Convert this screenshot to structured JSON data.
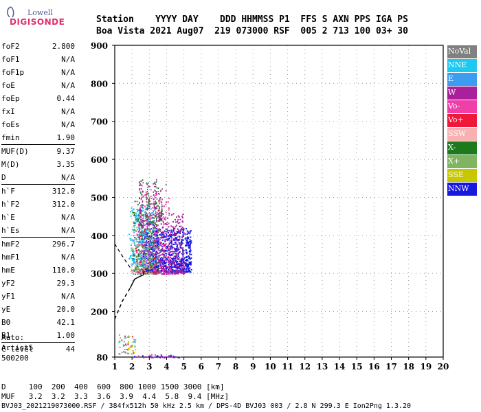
{
  "logo": {
    "line1": "Lowell",
    "line2": "DIGISONDE"
  },
  "header": {
    "line1": "Station    YYYY DAY    DDD HHMMSS P1  FFS S AXN PPS IGA PS",
    "line2": "Boa Vista 2021 Aug07  219 073000 RSF  005 2 713 100 03+ 30"
  },
  "params": [
    [
      {
        "name": "foF2",
        "value": "2.800"
      },
      {
        "name": "foF1",
        "value": "N/A"
      },
      {
        "name": "foF1p",
        "value": "N/A"
      },
      {
        "name": "foE",
        "value": "N/A"
      },
      {
        "name": "foEp",
        "value": "0.44"
      },
      {
        "name": "fxI",
        "value": "N/A"
      },
      {
        "name": "foEs",
        "value": "N/A"
      },
      {
        "name": "fmin",
        "value": "1.90"
      }
    ],
    [
      {
        "name": "MUF(D)",
        "value": "9.37"
      },
      {
        "name": "M(D)",
        "value": "3.35"
      },
      {
        "name": "D",
        "value": "N/A"
      }
    ],
    [
      {
        "name": "h`F",
        "value": "312.0"
      },
      {
        "name": "h`F2",
        "value": "312.0"
      },
      {
        "name": "h`E",
        "value": "N/A"
      },
      {
        "name": "h`Es",
        "value": "N/A"
      }
    ],
    [
      {
        "name": "hmF2",
        "value": "296.7"
      },
      {
        "name": "hmF1",
        "value": "N/A"
      },
      {
        "name": "hmE",
        "value": "110.0"
      },
      {
        "name": "yF2",
        "value": "29.3"
      },
      {
        "name": "yF1",
        "value": "N/A"
      },
      {
        "name": "yE",
        "value": "20.0"
      },
      {
        "name": "B0",
        "value": "42.1"
      },
      {
        "name": "B1",
        "value": "1.00"
      }
    ],
    [
      {
        "name": "C-level",
        "value": "44"
      }
    ]
  ],
  "auto": {
    "line1": "Auto:",
    "line2": "Artist5",
    "line3": "500200"
  },
  "footer": {
    "d_line": "D     100  200  400  600  800 1000 1500 3000 [km]",
    "muf_line": "MUF   3.2  3.2  3.3  3.6  3.9  4.4  5.8  9.4 [MHz]",
    "source": "BVJ03_2021219073000.RSF / 384fx512h 50 kHz 2.5 km / DPS-4D BVJ03 003 / 2.8 N 299.3 E Ion2Png 1.3.20"
  },
  "legend": [
    {
      "label": "NoVal",
      "color": "#808080"
    },
    {
      "label": "NNE",
      "color": "#1ec8f0"
    },
    {
      "label": "E",
      "color": "#3c9cf0"
    },
    {
      "label": "W",
      "color": "#a8209c"
    },
    {
      "label": "Vo-",
      "color": "#f040a8"
    },
    {
      "label": "Vo+",
      "color": "#f01838"
    },
    {
      "label": "SSW",
      "color": "#f8b0b0"
    },
    {
      "label": "X-",
      "color": "#1c7a1c"
    },
    {
      "label": "X+",
      "color": "#80b460"
    },
    {
      "label": "SSE",
      "color": "#c8c800"
    },
    {
      "label": "NNW",
      "color": "#1818e0"
    }
  ],
  "chart_data": {
    "type": "scatter",
    "x_ticks": [
      "1",
      "2",
      "3",
      "4",
      "5",
      "6",
      "7",
      "8",
      "9",
      "10",
      "11",
      "12",
      "13",
      "14",
      "15",
      "16",
      "17",
      "18",
      "19",
      "20"
    ],
    "y_ticks": [
      "80",
      "200",
      "300",
      "400",
      "500",
      "600",
      "700",
      "800",
      "900"
    ],
    "xlim": [
      1,
      20
    ],
    "ylim": [
      80,
      900
    ],
    "y_ticks_numeric": [
      80,
      200,
      300,
      400,
      500,
      600,
      700,
      800,
      900
    ],
    "echo_clusters": [
      {
        "direction": "NNW",
        "x_range": [
          2.6,
          5.4
        ],
        "y_range": [
          305,
          420
        ],
        "density": 900
      },
      {
        "direction": "W",
        "x_range": [
          2.3,
          5.0
        ],
        "y_range": [
          300,
          460
        ],
        "density": 450
      },
      {
        "direction": "Vo-",
        "x_range": [
          2.2,
          4.2
        ],
        "y_range": [
          300,
          520
        ],
        "density": 220
      },
      {
        "direction": "NNE",
        "x_range": [
          1.8,
          3.2
        ],
        "y_range": [
          320,
          480
        ],
        "density": 160
      },
      {
        "direction": "E",
        "x_range": [
          2.0,
          3.4
        ],
        "y_range": [
          330,
          470
        ],
        "density": 120
      },
      {
        "direction": "X-",
        "x_range": [
          2.0,
          3.5
        ],
        "y_range": [
          300,
          500
        ],
        "density": 140
      },
      {
        "direction": "X+",
        "x_range": [
          2.0,
          3.2
        ],
        "y_range": [
          300,
          430
        ],
        "density": 60
      },
      {
        "direction": "SSW",
        "x_range": [
          1.9,
          3.0
        ],
        "y_range": [
          300,
          380
        ],
        "density": 40
      },
      {
        "direction": "Vo+",
        "x_range": [
          2.2,
          3.4
        ],
        "y_range": [
          300,
          420
        ],
        "density": 30
      },
      {
        "direction": "NoVal",
        "x_range": [
          2.4,
          4.0
        ],
        "y_range": [
          340,
          540
        ],
        "density": 50
      }
    ],
    "sparse_columns": [
      {
        "x": 2.5,
        "y_range": [
          430,
          560
        ]
      },
      {
        "x": 2.9,
        "y_range": [
          430,
          540
        ]
      },
      {
        "x": 3.3,
        "y_range": [
          420,
          550
        ]
      },
      {
        "x": 3.6,
        "y_range": [
          440,
          530
        ]
      }
    ],
    "low_echoes": [
      {
        "x_range": [
          1.2,
          2.2
        ],
        "y_range": [
          90,
          140
        ]
      },
      {
        "x_range": [
          2.0,
          4.8
        ],
        "y_range": [
          80,
          88
        ]
      }
    ],
    "trace_solid": [
      [
        2.7,
        307
      ],
      [
        2.65,
        296
      ],
      [
        2.4,
        291
      ],
      [
        2.15,
        285
      ],
      [
        1.9,
        262
      ]
    ],
    "trace_dashed": [
      [
        1.0,
        180
      ],
      [
        1.45,
        228
      ],
      [
        1.9,
        262
      ]
    ],
    "trace_upper": [
      [
        1.0,
        378
      ],
      [
        1.35,
        352
      ],
      [
        1.7,
        328
      ],
      [
        2.0,
        308
      ]
    ]
  }
}
